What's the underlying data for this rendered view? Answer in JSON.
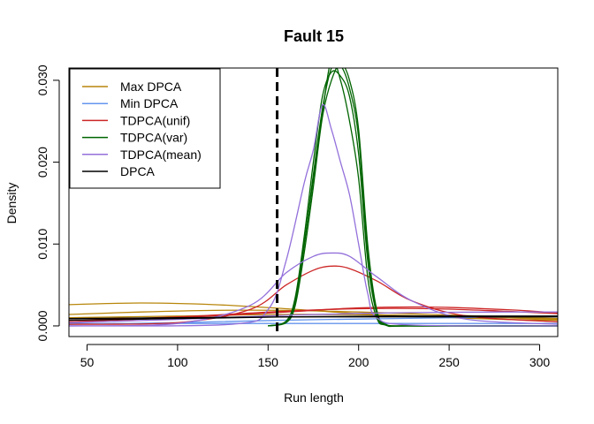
{
  "chart_data": {
    "type": "line",
    "title": "Fault 15",
    "xlabel": "Run length",
    "ylabel": "Density",
    "xlim": [
      40,
      310
    ],
    "ylim": [
      -0.0013,
      0.0315
    ],
    "x_ticks": [
      50,
      100,
      150,
      200,
      250,
      300
    ],
    "y_ticks": [
      0.0,
      0.01,
      0.02,
      0.03
    ],
    "x_tick_labels": [
      "50",
      "100",
      "150",
      "200",
      "250",
      "300"
    ],
    "y_tick_labels": [
      "0.000",
      "0.010",
      "0.020",
      "0.030"
    ],
    "vline": {
      "x": 155,
      "style": "dashed",
      "color": "#000000"
    },
    "legend_position": "top-left",
    "grid": false,
    "legend": [
      {
        "name": "Max DPCA",
        "color": "#B8860B"
      },
      {
        "name": "Min DPCA",
        "color": "#6495ED"
      },
      {
        "name": "TDPCA(unif)",
        "color": "#CD2626"
      },
      {
        "name": "TDPCA(var)",
        "color": "#006400"
      },
      {
        "name": "TDPCA(mean)",
        "color": "#9370DB"
      },
      {
        "name": "DPCA",
        "color": "#000000"
      }
    ],
    "series": [
      {
        "name": "Max DPCA",
        "color": "#B8860B",
        "x": [
          40,
          80,
          120,
          160,
          200,
          240,
          280,
          310
        ],
        "y": [
          0.0026,
          0.0028,
          0.0026,
          0.0021,
          0.0015,
          0.0011,
          0.0008,
          0.0007
        ]
      },
      {
        "color": "#B8860B",
        "x": [
          40,
          80,
          120,
          160,
          200,
          240,
          280,
          310
        ],
        "y": [
          0.0014,
          0.0017,
          0.0019,
          0.0019,
          0.0017,
          0.0014,
          0.0011,
          0.0009
        ]
      },
      {
        "color": "#B8860B",
        "x": [
          40,
          100,
          160,
          220,
          280,
          310
        ],
        "y": [
          0.001,
          0.0012,
          0.0014,
          0.0013,
          0.001,
          0.0008
        ]
      },
      {
        "name": "Min DPCA",
        "color": "#6495ED",
        "x": [
          40,
          100,
          160,
          220,
          280,
          310
        ],
        "y": [
          0.0003,
          0.0003,
          0.0003,
          0.0003,
          0.0003,
          0.0003
        ]
      },
      {
        "color": "#6495ED",
        "x": [
          40,
          100,
          160,
          220,
          280,
          310
        ],
        "y": [
          0.0002,
          0.0004,
          0.0007,
          0.0009,
          0.0011,
          0.0012
        ]
      },
      {
        "name": "TDPCA(unif)",
        "color": "#CD2626",
        "x": [
          40,
          100,
          140,
          160,
          175,
          185,
          195,
          210,
          230,
          260,
          310
        ],
        "y": [
          0.0002,
          0.0004,
          0.002,
          0.005,
          0.0068,
          0.0073,
          0.007,
          0.0055,
          0.003,
          0.0012,
          0.0005
        ]
      },
      {
        "color": "#CD2626",
        "x": [
          40,
          100,
          160,
          200,
          240,
          280,
          310
        ],
        "y": [
          0.0007,
          0.0011,
          0.0018,
          0.0021,
          0.0021,
          0.0018,
          0.0015
        ]
      },
      {
        "color": "#CD2626",
        "x": [
          40,
          100,
          160,
          200,
          240,
          280,
          310
        ],
        "y": [
          0.0005,
          0.001,
          0.0017,
          0.0022,
          0.0023,
          0.002,
          0.0016
        ]
      },
      {
        "name": "TDPCA(var)",
        "color": "#006400",
        "x": [
          150,
          160,
          165,
          170,
          175,
          180,
          185,
          190,
          195,
          200,
          205,
          210,
          215,
          230,
          260,
          310
        ],
        "y": [
          0.0,
          0.0005,
          0.003,
          0.01,
          0.018,
          0.026,
          0.0325,
          0.03,
          0.025,
          0.018,
          0.006,
          0.001,
          0.0001,
          0.0,
          0.0,
          0.0
        ]
      },
      {
        "color": "#006400",
        "x": [
          150,
          160,
          165,
          170,
          175,
          180,
          185,
          190,
          195,
          200,
          205,
          210,
          215,
          230,
          310
        ],
        "y": [
          0.0,
          0.0006,
          0.0035,
          0.011,
          0.02,
          0.028,
          0.031,
          0.0305,
          0.028,
          0.021,
          0.008,
          0.0015,
          0.0001,
          0.0,
          0.0
        ]
      },
      {
        "color": "#006400",
        "x": [
          150,
          160,
          165,
          170,
          175,
          180,
          185,
          190,
          195,
          200,
          205,
          210,
          215,
          230,
          310
        ],
        "y": [
          0.0,
          0.0004,
          0.0025,
          0.009,
          0.017,
          0.0255,
          0.03,
          0.032,
          0.03,
          0.024,
          0.01,
          0.002,
          0.0002,
          0.0,
          0.0
        ]
      },
      {
        "color": "#006400",
        "x": [
          150,
          160,
          165,
          170,
          175,
          180,
          185,
          190,
          195,
          200,
          205,
          210,
          215,
          230,
          310
        ],
        "y": [
          0.0,
          0.0005,
          0.003,
          0.01,
          0.0185,
          0.0265,
          0.0315,
          0.0318,
          0.029,
          0.023,
          0.009,
          0.0018,
          0.0001,
          0.0,
          0.0
        ]
      },
      {
        "name": "TDPCA(mean)",
        "color": "#9370DB",
        "x": [
          40,
          130,
          150,
          160,
          170,
          175,
          180,
          185,
          190,
          195,
          200,
          205,
          210,
          230,
          310
        ],
        "y": [
          0.0,
          0.0002,
          0.002,
          0.008,
          0.0175,
          0.0215,
          0.027,
          0.024,
          0.02,
          0.016,
          0.01,
          0.004,
          0.001,
          0.0001,
          0.0
        ]
      },
      {
        "color": "#9370DB",
        "x": [
          40,
          100,
          140,
          160,
          175,
          185,
          195,
          210,
          230,
          260,
          310
        ],
        "y": [
          0.0,
          0.0003,
          0.0025,
          0.0065,
          0.0085,
          0.0089,
          0.0085,
          0.006,
          0.003,
          0.0008,
          0.0002
        ]
      },
      {
        "color": "#9370DB",
        "x": [
          40,
          100,
          160,
          220,
          280,
          310
        ],
        "y": [
          0.0004,
          0.0008,
          0.0013,
          0.0016,
          0.0017,
          0.0017
        ]
      },
      {
        "name": "DPCA",
        "color": "#000000",
        "x": [
          40,
          100,
          160,
          220,
          280,
          310
        ],
        "y": [
          0.0007,
          0.0009,
          0.0011,
          0.0012,
          0.0012,
          0.0012
        ]
      },
      {
        "color": "#000000",
        "x": [
          40,
          100,
          160,
          220,
          280,
          310
        ],
        "y": [
          0.0009,
          0.001,
          0.0011,
          0.0011,
          0.0011,
          0.0011
        ]
      }
    ]
  }
}
